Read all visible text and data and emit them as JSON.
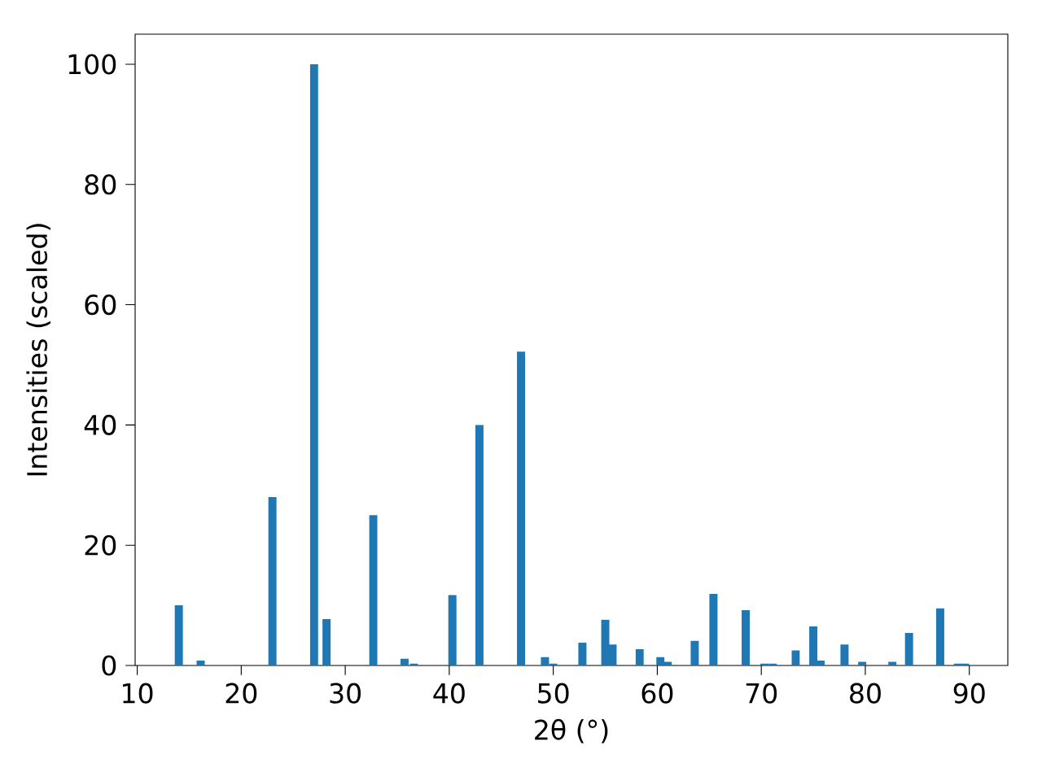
{
  "chart_data": {
    "type": "bar",
    "xlabel": "2θ (°)",
    "ylabel": "Intensities (scaled)",
    "color": "#1f77b4",
    "x": [
      14.0,
      16.1,
      23.0,
      27.0,
      28.2,
      32.7,
      35.7,
      36.6,
      40.3,
      42.9,
      46.9,
      49.2,
      50.0,
      52.8,
      55.0,
      55.7,
      58.3,
      60.3,
      61.0,
      63.6,
      65.4,
      68.5,
      70.3,
      71.1,
      73.3,
      75.0,
      75.7,
      78.0,
      79.7,
      82.6,
      84.2,
      87.2,
      88.9,
      89.6
    ],
    "values": [
      10,
      0.8,
      28,
      100,
      7.7,
      25,
      1.1,
      0.3,
      11.7,
      40,
      52.2,
      1.4,
      0.3,
      3.8,
      7.6,
      3.5,
      2.7,
      1.4,
      0.6,
      4.1,
      11.9,
      9.2,
      0.3,
      0.3,
      2.5,
      6.5,
      0.8,
      3.5,
      0.6,
      0.6,
      5.4,
      9.5,
      0.3,
      0.3
    ],
    "xlim": [
      9.8,
      93.7
    ],
    "ylim": [
      0,
      105
    ],
    "xticks": [
      10,
      20,
      30,
      40,
      50,
      60,
      70,
      80,
      90
    ],
    "yticks": [
      0,
      20,
      40,
      60,
      80,
      100
    ]
  }
}
